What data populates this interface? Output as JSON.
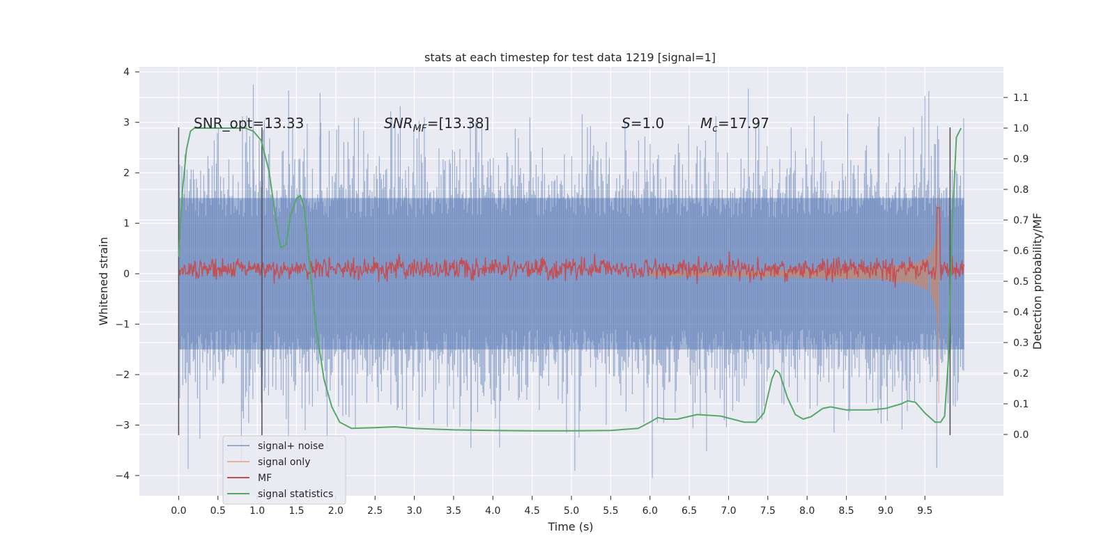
{
  "chart_data": {
    "type": "line",
    "title": "stats at each timestep for test data 1219 [signal=1]",
    "xlabel": "Time (s)",
    "ylabel": "Whitened strain",
    "ylabel_right": "Detection probability/MF",
    "xlim": [
      -0.5,
      10.5
    ],
    "ylim": [
      -4.4,
      4.1
    ],
    "ylim_right": [
      -0.2,
      1.2
    ],
    "x_ticks": [
      "0.0",
      "0.5",
      "1.0",
      "1.5",
      "2.0",
      "2.5",
      "3.0",
      "3.5",
      "4.0",
      "4.5",
      "5.0",
      "5.5",
      "6.0",
      "6.5",
      "7.0",
      "7.5",
      "8.0",
      "8.5",
      "9.0",
      "9.5"
    ],
    "y_ticks": [
      "−4",
      "−3",
      "−2",
      "−1",
      "0",
      "1",
      "2",
      "3",
      "4"
    ],
    "y_ticks_right": [
      "0.0",
      "0.1",
      "0.2",
      "0.3",
      "0.4",
      "0.5",
      "0.6",
      "0.7",
      "0.8",
      "0.9",
      "1.0",
      "1.1"
    ],
    "grid": true,
    "legend_position": "lower-left",
    "annotations": {
      "snr_opt": "SNR_opt=13.33",
      "snr_mf_label": "SNR",
      "snr_mf_sub": "MF",
      "snr_mf_value": "=[13.38]",
      "s_label": "S",
      "s_value": "=1.0",
      "mc_label": "M",
      "mc_sub": "c",
      "mc_value": "=17.97"
    },
    "vertical_markers": [
      0.0,
      1.06,
      9.82
    ],
    "colors": {
      "signal_noise": "#4c72b0",
      "signal_only": "#dd8452",
      "mf": "#c44e52",
      "statistics": "#55a868",
      "background": "#eaeaf2",
      "marker": "#555555"
    },
    "series": [
      {
        "name": "signal+ noise",
        "style": "noise envelope",
        "x": [
          0.0,
          10.0
        ],
        "typical_range": [
          -1.5,
          1.5
        ],
        "spikes_max": [
          3.75,
          3.63,
          3.22,
          3.52,
          3.62,
          3.58
        ],
        "spikes_min": [
          -3.87,
          -3.27,
          -3.45,
          -4.05,
          -3.85
        ]
      },
      {
        "name": "signal only",
        "style": "chirp",
        "x_start": 6.0,
        "x_end": 9.68,
        "peak_amplitude": 2.6
      },
      {
        "name": "MF",
        "style": "noisy line (right axis)",
        "baseline": 0.54,
        "fluctuation": 0.05,
        "peak": {
          "x": 9.67,
          "y": 0.74
        }
      },
      {
        "name": "signal statistics",
        "style": "line (right axis)",
        "x": [
          0.0,
          0.05,
          0.1,
          0.15,
          0.2,
          0.3,
          0.5,
          0.7,
          0.85,
          0.95,
          1.05,
          1.15,
          1.25,
          1.3,
          1.37,
          1.42,
          1.5,
          1.55,
          1.6,
          1.65,
          1.75,
          1.85,
          1.95,
          2.05,
          2.2,
          2.5,
          2.75,
          3.0,
          3.5,
          4.0,
          4.5,
          5.0,
          5.5,
          5.85,
          6.0,
          6.1,
          6.2,
          6.35,
          6.6,
          6.9,
          7.2,
          7.35,
          7.45,
          7.55,
          7.6,
          7.65,
          7.75,
          7.85,
          7.95,
          8.05,
          8.2,
          8.3,
          8.5,
          8.8,
          9.0,
          9.2,
          9.28,
          9.38,
          9.5,
          9.63,
          9.7,
          9.75,
          9.8,
          9.85,
          9.9,
          9.96
        ],
        "values": [
          0.58,
          0.8,
          0.93,
          0.99,
          1.0,
          1.0,
          1.0,
          1.0,
          1.0,
          0.99,
          0.96,
          0.86,
          0.68,
          0.61,
          0.62,
          0.71,
          0.77,
          0.78,
          0.74,
          0.6,
          0.35,
          0.18,
          0.09,
          0.04,
          0.02,
          0.022,
          0.025,
          0.02,
          0.015,
          0.013,
          0.012,
          0.012,
          0.013,
          0.02,
          0.04,
          0.055,
          0.05,
          0.05,
          0.065,
          0.06,
          0.04,
          0.04,
          0.07,
          0.18,
          0.21,
          0.2,
          0.12,
          0.065,
          0.05,
          0.058,
          0.085,
          0.09,
          0.08,
          0.08,
          0.085,
          0.1,
          0.11,
          0.105,
          0.07,
          0.04,
          0.04,
          0.06,
          0.25,
          0.7,
          0.97,
          1.0
        ]
      }
    ]
  }
}
